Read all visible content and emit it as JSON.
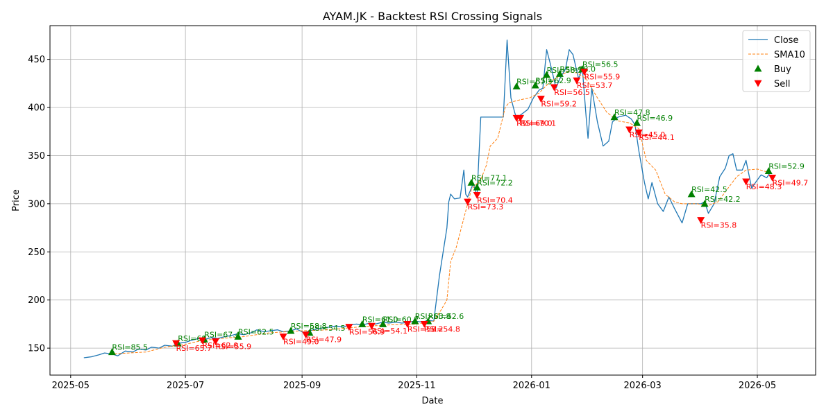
{
  "chart_data": {
    "type": "line",
    "title": "AYAM.JK - Backtest RSI Crossing Signals",
    "xlabel": "Date",
    "ylabel": "Price",
    "xlim": [
      "2025-04-20",
      "2026-06-01"
    ],
    "ylim": [
      122,
      485
    ],
    "grid": true,
    "legend_position": "top-right",
    "x_ticks": [
      "2025-05",
      "2025-07",
      "2025-09",
      "2025-11",
      "2026-01",
      "2026-03",
      "2026-05"
    ],
    "x_tick_dates": [
      "2025-05-01",
      "2025-07-01",
      "2025-09-01",
      "2025-11-01",
      "2026-01-01",
      "2026-03-01",
      "2026-05-01"
    ],
    "y_ticks": [
      150,
      200,
      250,
      300,
      350,
      400,
      450
    ],
    "colors": {
      "close": "#1f77b4",
      "sma": "#ff7f0e",
      "buy": "#008000",
      "sell": "#ff0000",
      "grid": "#b0b0b0"
    },
    "series": [
      {
        "name": "Close",
        "style": "solid",
        "points": [
          [
            "2025-05-08",
            140
          ],
          [
            "2025-05-12",
            141
          ],
          [
            "2025-05-16",
            143
          ],
          [
            "2025-05-19",
            145
          ],
          [
            "2025-05-23",
            144
          ],
          [
            "2025-05-26",
            142
          ],
          [
            "2025-05-30",
            147
          ],
          [
            "2025-06-03",
            146
          ],
          [
            "2025-06-06",
            149
          ],
          [
            "2025-06-10",
            148
          ],
          [
            "2025-06-13",
            151
          ],
          [
            "2025-06-17",
            150
          ],
          [
            "2025-06-20",
            153
          ],
          [
            "2025-06-24",
            152
          ],
          [
            "2025-06-27",
            155
          ],
          [
            "2025-07-01",
            156
          ],
          [
            "2025-07-04",
            158
          ],
          [
            "2025-07-08",
            160
          ],
          [
            "2025-07-11",
            159
          ],
          [
            "2025-07-15",
            161
          ],
          [
            "2025-07-18",
            160
          ],
          [
            "2025-07-22",
            162
          ],
          [
            "2025-07-25",
            163
          ],
          [
            "2025-07-29",
            165
          ],
          [
            "2025-08-01",
            164
          ],
          [
            "2025-08-05",
            166
          ],
          [
            "2025-08-08",
            169
          ],
          [
            "2025-08-12",
            167
          ],
          [
            "2025-08-15",
            168
          ],
          [
            "2025-08-19",
            169
          ],
          [
            "2025-08-22",
            167
          ],
          [
            "2025-08-26",
            168
          ],
          [
            "2025-08-29",
            170
          ],
          [
            "2025-09-02",
            166
          ],
          [
            "2025-09-05",
            168
          ],
          [
            "2025-09-09",
            170
          ],
          [
            "2025-09-12",
            171
          ],
          [
            "2025-09-16",
            172
          ],
          [
            "2025-09-19",
            173
          ],
          [
            "2025-09-23",
            172
          ],
          [
            "2025-09-26",
            174
          ],
          [
            "2025-09-30",
            175
          ],
          [
            "2025-10-03",
            174
          ],
          [
            "2025-10-07",
            176
          ],
          [
            "2025-10-10",
            175
          ],
          [
            "2025-10-14",
            177
          ],
          [
            "2025-10-17",
            176
          ],
          [
            "2025-10-21",
            177
          ],
          [
            "2025-10-24",
            176
          ],
          [
            "2025-10-28",
            177
          ],
          [
            "2025-10-31",
            178
          ],
          [
            "2025-11-04",
            177
          ],
          [
            "2025-11-07",
            179
          ],
          [
            "2025-11-10",
            178
          ],
          [
            "2025-11-13",
            225
          ],
          [
            "2025-11-17",
            275
          ],
          [
            "2025-11-18",
            302
          ],
          [
            "2025-11-19",
            310
          ],
          [
            "2025-11-21",
            305
          ],
          [
            "2025-11-24",
            306
          ],
          [
            "2025-11-26",
            335
          ],
          [
            "2025-11-27",
            310
          ],
          [
            "2025-11-28",
            307
          ],
          [
            "2025-12-01",
            321
          ],
          [
            "2025-12-03",
            308
          ],
          [
            "2025-12-05",
            390
          ],
          [
            "2025-12-10",
            390
          ],
          [
            "2025-12-15",
            390
          ],
          [
            "2025-12-17",
            390
          ],
          [
            "2025-12-19",
            470
          ],
          [
            "2025-12-21",
            410
          ],
          [
            "2025-12-23",
            395
          ],
          [
            "2025-12-24",
            389
          ],
          [
            "2025-12-26",
            392
          ],
          [
            "2025-12-30",
            398
          ],
          [
            "2026-01-02",
            410
          ],
          [
            "2026-01-05",
            418
          ],
          [
            "2026-01-07",
            420
          ],
          [
            "2026-01-09",
            460
          ],
          [
            "2026-01-11",
            445
          ],
          [
            "2026-01-14",
            420
          ],
          [
            "2026-01-16",
            430
          ],
          [
            "2026-01-19",
            440
          ],
          [
            "2026-01-21",
            460
          ],
          [
            "2026-01-23",
            455
          ],
          [
            "2026-01-26",
            430
          ],
          [
            "2026-01-28",
            440
          ],
          [
            "2026-01-30",
            390
          ],
          [
            "2026-01-31",
            368
          ],
          [
            "2026-02-02",
            420
          ],
          [
            "2026-02-05",
            385
          ],
          [
            "2026-02-08",
            360
          ],
          [
            "2026-02-11",
            365
          ],
          [
            "2026-02-13",
            385
          ],
          [
            "2026-02-16",
            390
          ],
          [
            "2026-02-20",
            392
          ],
          [
            "2026-02-23",
            388
          ],
          [
            "2026-02-25",
            382
          ],
          [
            "2026-02-27",
            355
          ],
          [
            "2026-03-02",
            322
          ],
          [
            "2026-03-04",
            305
          ],
          [
            "2026-03-06",
            322
          ],
          [
            "2026-03-09",
            300
          ],
          [
            "2026-03-12",
            292
          ],
          [
            "2026-03-15",
            307
          ],
          [
            "2026-03-18",
            295
          ],
          [
            "2026-03-22",
            280
          ],
          [
            "2026-03-25",
            300
          ],
          [
            "2026-03-28",
            300
          ],
          [
            "2026-04-01",
            300
          ],
          [
            "2026-04-03",
            302
          ],
          [
            "2026-04-05",
            290
          ],
          [
            "2026-04-08",
            300
          ],
          [
            "2026-04-11",
            328
          ],
          [
            "2026-04-14",
            337
          ],
          [
            "2026-04-16",
            350
          ],
          [
            "2026-04-18",
            352
          ],
          [
            "2026-04-20",
            335
          ],
          [
            "2026-04-23",
            335
          ],
          [
            "2026-04-25",
            345
          ],
          [
            "2026-04-28",
            316
          ],
          [
            "2026-04-30",
            322
          ],
          [
            "2026-05-03",
            330
          ],
          [
            "2026-05-06",
            327
          ],
          [
            "2026-05-08",
            333
          ]
        ]
      },
      {
        "name": "SMA10",
        "style": "dashed",
        "points": [
          [
            "2025-05-22",
            144
          ],
          [
            "2025-06-01",
            145
          ],
          [
            "2025-06-10",
            146
          ],
          [
            "2025-06-20",
            151
          ],
          [
            "2025-07-01",
            154
          ],
          [
            "2025-07-10",
            158
          ],
          [
            "2025-07-20",
            160
          ],
          [
            "2025-08-01",
            162
          ],
          [
            "2025-08-15",
            166
          ],
          [
            "2025-09-01",
            168
          ],
          [
            "2025-09-15",
            169
          ],
          [
            "2025-10-01",
            172
          ],
          [
            "2025-10-15",
            174
          ],
          [
            "2025-11-01",
            175
          ],
          [
            "2025-11-10",
            178
          ],
          [
            "2025-11-14",
            190
          ],
          [
            "2025-11-17",
            200
          ],
          [
            "2025-11-19",
            240
          ],
          [
            "2025-11-22",
            255
          ],
          [
            "2025-11-26",
            285
          ],
          [
            "2025-11-30",
            315
          ],
          [
            "2025-12-05",
            325
          ],
          [
            "2025-12-08",
            340
          ],
          [
            "2025-12-10",
            360
          ],
          [
            "2025-12-14",
            368
          ],
          [
            "2025-12-18",
            400
          ],
          [
            "2025-12-20",
            405
          ],
          [
            "2025-12-26",
            408
          ],
          [
            "2025-12-31",
            410
          ],
          [
            "2026-01-05",
            415
          ],
          [
            "2026-01-10",
            425
          ],
          [
            "2026-01-15",
            432
          ],
          [
            "2026-01-20",
            437
          ],
          [
            "2026-01-25",
            436
          ],
          [
            "2026-01-30",
            430
          ],
          [
            "2026-02-05",
            410
          ],
          [
            "2026-02-10",
            395
          ],
          [
            "2026-02-16",
            386
          ],
          [
            "2026-02-22",
            384
          ],
          [
            "2026-02-27",
            378
          ],
          [
            "2026-03-03",
            345
          ],
          [
            "2026-03-08",
            335
          ],
          [
            "2026-03-13",
            310
          ],
          [
            "2026-03-18",
            302
          ],
          [
            "2026-03-22",
            300
          ],
          [
            "2026-03-30",
            300
          ],
          [
            "2026-04-05",
            298
          ],
          [
            "2026-04-10",
            302
          ],
          [
            "2026-04-15",
            315
          ],
          [
            "2026-04-20",
            328
          ],
          [
            "2026-04-25",
            335
          ],
          [
            "2026-05-01",
            336
          ],
          [
            "2026-05-08",
            332
          ]
        ]
      }
    ],
    "buy_signals": [
      {
        "date": "2025-05-23",
        "price": 146,
        "label": "RSI=85.5"
      },
      {
        "date": "2025-06-27",
        "price": 155,
        "label": "RSI=69"
      },
      {
        "date": "2025-07-11",
        "price": 159,
        "label": "RSI=67.4"
      },
      {
        "date": "2025-07-29",
        "price": 162,
        "label": "RSI=62.5"
      },
      {
        "date": "2025-08-26",
        "price": 168,
        "label": "RSI=58.8"
      },
      {
        "date": "2025-09-05",
        "price": 166,
        "label": "RSI=54.5"
      },
      {
        "date": "2025-10-03",
        "price": 175,
        "label": "RSI=61.0"
      },
      {
        "date": "2025-10-14",
        "price": 175,
        "label": "RSI=60.2"
      },
      {
        "date": "2025-10-31",
        "price": 178,
        "label": "RSI=63.8"
      },
      {
        "date": "2025-11-07",
        "price": 178,
        "label": "RSI=62.6"
      },
      {
        "date": "2025-11-30",
        "price": 322,
        "label": "RSI=77.1"
      },
      {
        "date": "2025-12-03",
        "price": 317,
        "label": "RSI=72.2"
      },
      {
        "date": "2025-12-24",
        "price": 422,
        "label": "RSI=67.3"
      },
      {
        "date": "2026-01-03",
        "price": 423,
        "label": "RSI=62.9"
      },
      {
        "date": "2026-01-09",
        "price": 434,
        "label": "RSI=58.5"
      },
      {
        "date": "2026-01-16",
        "price": 435,
        "label": "RSI=58.0"
      },
      {
        "date": "2026-01-28",
        "price": 440,
        "label": "RSI=56.5"
      },
      {
        "date": "2026-02-14",
        "price": 390,
        "label": "RSI=47.8"
      },
      {
        "date": "2026-02-26",
        "price": 384,
        "label": "RSI=46.9"
      },
      {
        "date": "2026-03-27",
        "price": 310,
        "label": "RSI=42.5"
      },
      {
        "date": "2026-04-03",
        "price": 300,
        "label": "RSI=42.2"
      },
      {
        "date": "2026-05-07",
        "price": 334,
        "label": "RSI=52.9"
      }
    ],
    "sell_signals": [
      {
        "date": "2025-06-26",
        "price": 155,
        "label": "RSI=65.7"
      },
      {
        "date": "2025-07-10",
        "price": 158,
        "label": "RSI=62.0"
      },
      {
        "date": "2025-07-17",
        "price": 157,
        "label": "RSI=55.9"
      },
      {
        "date": "2025-08-22",
        "price": 162,
        "label": "RSI=49.0"
      },
      {
        "date": "2025-09-03",
        "price": 164,
        "label": "RSI=47.9"
      },
      {
        "date": "2025-09-26",
        "price": 172,
        "label": "RSI=56.9"
      },
      {
        "date": "2025-10-08",
        "price": 173,
        "label": "RSI=54.1"
      },
      {
        "date": "2025-10-27",
        "price": 175,
        "label": "RSI=58.2"
      },
      {
        "date": "2025-11-05",
        "price": 175,
        "label": "RSI=54.8"
      },
      {
        "date": "2025-11-28",
        "price": 302,
        "label": "RSI=73.3"
      },
      {
        "date": "2025-12-03",
        "price": 309,
        "label": "RSI=70.4"
      },
      {
        "date": "2025-12-24",
        "price": 389,
        "label": "RSI=69.0"
      },
      {
        "date": "2025-12-26",
        "price": 389,
        "label": "RSI=70.1"
      },
      {
        "date": "2026-01-06",
        "price": 409,
        "label": "RSI=59.2"
      },
      {
        "date": "2026-01-13",
        "price": 421,
        "label": "RSI=56.5"
      },
      {
        "date": "2026-01-25",
        "price": 428,
        "label": "RSI=53.7"
      },
      {
        "date": "2026-01-29",
        "price": 437,
        "label": "RSI=55.9"
      },
      {
        "date": "2026-02-22",
        "price": 377,
        "label": "RSI=45.0"
      },
      {
        "date": "2026-02-27",
        "price": 374,
        "label": "RSI=44.1"
      },
      {
        "date": "2026-04-01",
        "price": 283,
        "label": "RSI=35.8"
      },
      {
        "date": "2026-04-25",
        "price": 323,
        "label": "RSI=48.3"
      },
      {
        "date": "2026-05-09",
        "price": 327,
        "label": "RSI=49.7"
      }
    ],
    "legend": [
      {
        "key": "close",
        "label": "Close"
      },
      {
        "key": "sma",
        "label": "SMA10"
      },
      {
        "key": "buy",
        "label": "Buy"
      },
      {
        "key": "sell",
        "label": "Sell"
      }
    ]
  }
}
